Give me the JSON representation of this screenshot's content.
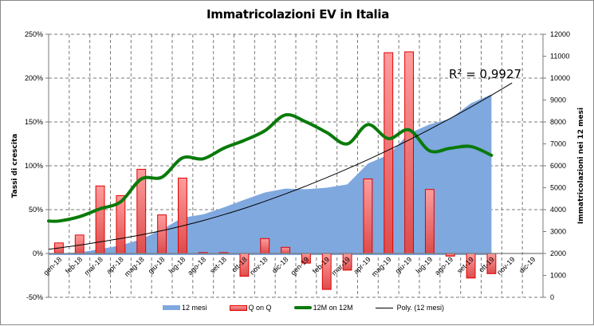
{
  "chart_data": {
    "type": "combo",
    "title": "Immatricolazioni EV in Italia",
    "categories": [
      "gen-18",
      "feb-18",
      "mar-18",
      "apr-18",
      "mag-18",
      "giu-18",
      "lug-18",
      "ago-18",
      "set-18",
      "ott-18",
      "nov-18",
      "dic-18",
      "gen-19",
      "feb-19",
      "mar-19",
      "apr-19",
      "mag-19",
      "giu-19",
      "lug-19",
      "ago-19",
      "set-19",
      "ott-19",
      "nov-19",
      "dic-19"
    ],
    "left_axis": {
      "label": "Tassi di crescita",
      "ylim": [
        -50,
        250
      ],
      "ticks": [
        "250%",
        "200%",
        "150%",
        "100%",
        "50%",
        "0%",
        "-50%"
      ],
      "tick_values": [
        250,
        200,
        150,
        100,
        50,
        0,
        -50
      ]
    },
    "right_axis": {
      "label": "Immatricolazioni nei 12 mesi",
      "ylim": [
        0,
        12000
      ],
      "ticks": [
        "12000",
        "11000",
        "10000",
        "9000",
        "8000",
        "7000",
        "6000",
        "5000",
        "4000",
        "3000",
        "2000",
        "1000",
        "0"
      ],
      "tick_values": [
        12000,
        11000,
        10000,
        9000,
        8000,
        7000,
        6000,
        5000,
        4000,
        3000,
        2000,
        1000,
        0
      ]
    },
    "grid": true,
    "legend_position": "bottom",
    "series": [
      {
        "name": "12 mesi",
        "type": "area",
        "axis": "right",
        "color": "#7fa8de",
        "values": [
          2000,
          2050,
          2200,
          2370,
          2650,
          3100,
          3630,
          3780,
          4100,
          4450,
          4780,
          4960,
          4930,
          5000,
          5150,
          6100,
          6500,
          7480,
          7890,
          8150,
          8850,
          9260,
          null,
          null
        ]
      },
      {
        "name": "Q on Q",
        "type": "bar",
        "axis": "left",
        "color": "#ff8080",
        "border_color": "#e00000",
        "values": [
          12,
          21,
          77,
          66,
          96,
          44,
          86,
          1,
          1,
          -26,
          17,
          7,
          -11,
          -41,
          -19,
          85,
          229,
          230,
          73,
          -3,
          -28,
          -23,
          null,
          null
        ]
      },
      {
        "name": "12M on 12M",
        "type": "line",
        "axis": "left",
        "color": "#0a7a0a",
        "values": [
          37,
          42,
          51,
          59,
          85,
          87,
          109,
          108,
          120,
          129,
          140,
          158,
          150,
          138,
          125,
          147,
          131,
          141,
          117,
          120,
          122,
          112,
          null,
          null
        ]
      },
      {
        "name": "Poly. (12 mesi)",
        "type": "trendline",
        "axis": "right",
        "color": "#000000",
        "values": [
          2250,
          2380,
          2530,
          2680,
          2850,
          3040,
          3260,
          3500,
          3770,
          4060,
          4380,
          4720,
          5080,
          5460,
          5860,
          6280,
          6720,
          7180,
          7660,
          8160,
          8680,
          9220,
          9780,
          10360
        ]
      }
    ],
    "annotations": [
      {
        "text": "R² = 0,9927"
      }
    ]
  }
}
